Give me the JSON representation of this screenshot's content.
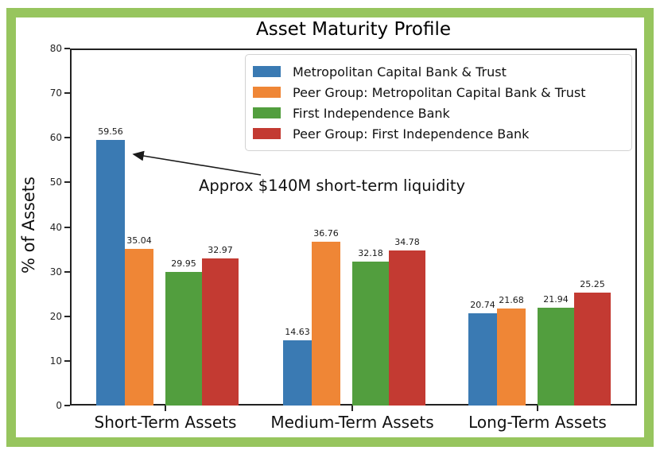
{
  "figure": {
    "border_color": "#97c55e",
    "background_color": "#ffffff",
    "axis_color": "#222222"
  },
  "chart_data": {
    "type": "bar",
    "title": "Asset Maturity Profile",
    "xlabel": "",
    "ylabel": "% of Assets",
    "ylim": [
      0,
      80
    ],
    "yticks": [
      0,
      10,
      20,
      30,
      40,
      50,
      60,
      70,
      80
    ],
    "categories": [
      "Short-Term Assets",
      "Medium-Term Assets",
      "Long-Term Assets"
    ],
    "series": [
      {
        "name": "Metropolitan Capital Bank & Trust",
        "color": "#3a7ab3",
        "values": [
          59.56,
          14.63,
          20.74
        ]
      },
      {
        "name": "Peer Group: Metropolitan Capital Bank & Trust",
        "color": "#ef8636",
        "values": [
          35.04,
          36.76,
          21.68
        ]
      },
      {
        "name": "First Independence Bank",
        "color": "#529e3e",
        "values": [
          29.95,
          32.18,
          21.94
        ]
      },
      {
        "name": "Peer Group: First Independence Bank",
        "color": "#c33a32",
        "values": [
          32.97,
          34.78,
          25.25
        ]
      }
    ],
    "bar_value_labels": true,
    "legend_position": "upper center",
    "grid": false,
    "annotation": {
      "text": "Approx $140M short-term liquidity"
    }
  }
}
